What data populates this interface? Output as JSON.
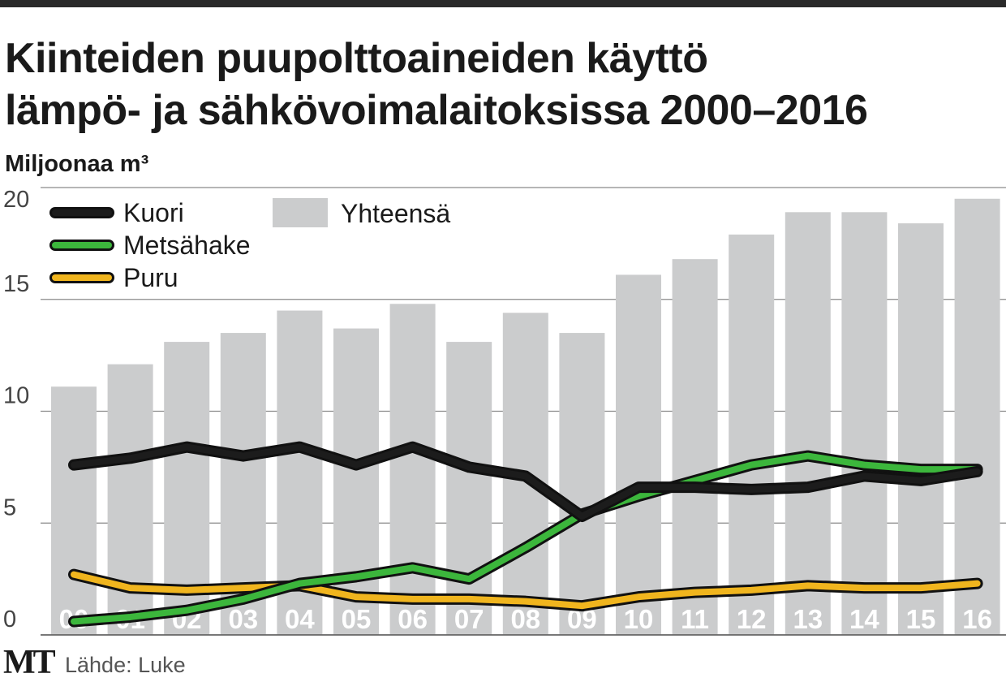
{
  "header": {
    "title_line1": "Kiinteiden puupolttoaineiden käyttö",
    "title_line2": "lämpö- ja sähkövoimalaitoksissa 2000–2016"
  },
  "footer": {
    "brand": "MT",
    "source": "Lähde: Luke"
  },
  "chart_data": {
    "type": "bar",
    "ylabel": "Miljoonaa m³",
    "ylim": [
      0,
      20
    ],
    "yticks": [
      0,
      5,
      10,
      15,
      20
    ],
    "grid": true,
    "legend_position": "top-left",
    "categories": [
      "00",
      "01",
      "02",
      "03",
      "04",
      "05",
      "06",
      "07",
      "08",
      "09",
      "10",
      "11",
      "12",
      "13",
      "14",
      "15",
      "16"
    ],
    "bars": {
      "name": "Yhteensä",
      "color": "#cbcccd",
      "values": [
        11.1,
        12.1,
        13.1,
        13.5,
        14.5,
        13.7,
        14.8,
        13.1,
        14.4,
        13.5,
        16.1,
        16.8,
        17.9,
        18.9,
        18.9,
        18.4,
        19.5
      ]
    },
    "series": [
      {
        "name": "Kuori",
        "color": "#1c1c1c",
        "values": [
          7.6,
          7.9,
          8.4,
          8.0,
          8.4,
          7.6,
          8.4,
          7.5,
          7.1,
          5.3,
          6.6,
          6.6,
          6.5,
          6.6,
          7.1,
          6.9,
          7.3
        ]
      },
      {
        "name": "Metsähake",
        "color": "#3cb63c",
        "values": [
          0.6,
          0.8,
          1.1,
          1.6,
          2.3,
          2.6,
          3.0,
          2.5,
          3.9,
          5.4,
          6.2,
          6.9,
          7.6,
          8.0,
          7.6,
          7.4,
          7.4
        ]
      },
      {
        "name": "Puru",
        "color": "#f0b51e",
        "values": [
          2.7,
          2.1,
          2.0,
          2.1,
          2.2,
          1.7,
          1.6,
          1.6,
          1.5,
          1.3,
          1.7,
          1.9,
          2.0,
          2.2,
          2.1,
          2.1,
          2.3
        ]
      }
    ]
  }
}
